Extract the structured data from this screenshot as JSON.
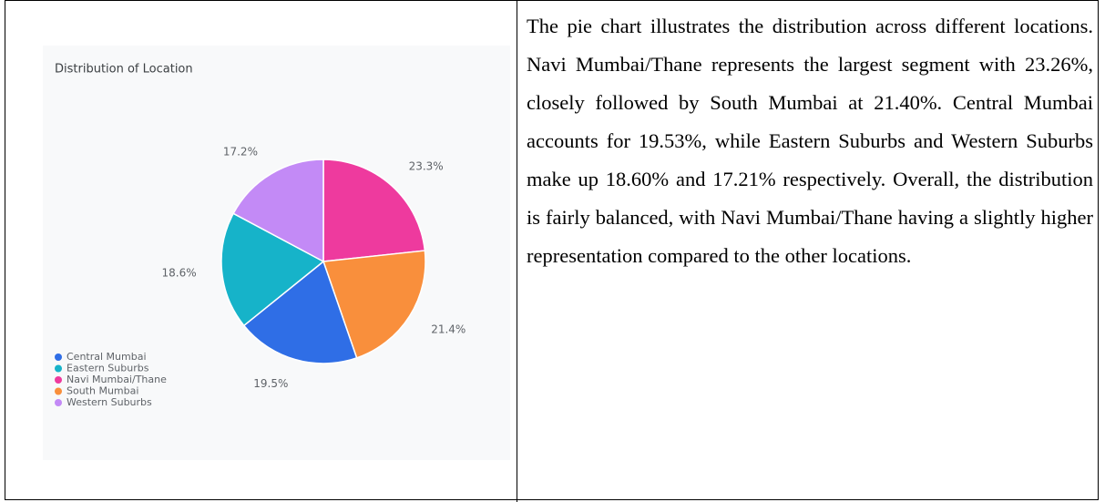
{
  "chart_data": {
    "type": "pie",
    "title": "Distribution of Location",
    "categories": [
      "Central Mumbai",
      "Eastern Suburbs",
      "Navi Mumbai/Thane",
      "South Mumbai",
      "Western Suburbs"
    ],
    "values": [
      19.5,
      18.6,
      23.3,
      21.4,
      17.2
    ],
    "value_labels": [
      "19.5%",
      "18.6%",
      "23.3%",
      "21.4%",
      "17.2%"
    ],
    "colors": [
      "#2f6ee6",
      "#16b3c9",
      "#ee3a9e",
      "#f98f3c",
      "#c38af6"
    ],
    "legend": "bottom-left"
  },
  "description": "The pie chart illustrates the distribution across different locations. Navi Mumbai/Thane represents the largest segment with 23.26%, closely followed by South Mumbai at 21.40%. Central Mumbai accounts for 19.53%, while Eastern Suburbs and Western Suburbs make up 18.60% and 17.21% respectively. Overall, the distribution is fairly balanced, with Navi Mumbai/Thane having a slightly higher representation compared to the other locations."
}
